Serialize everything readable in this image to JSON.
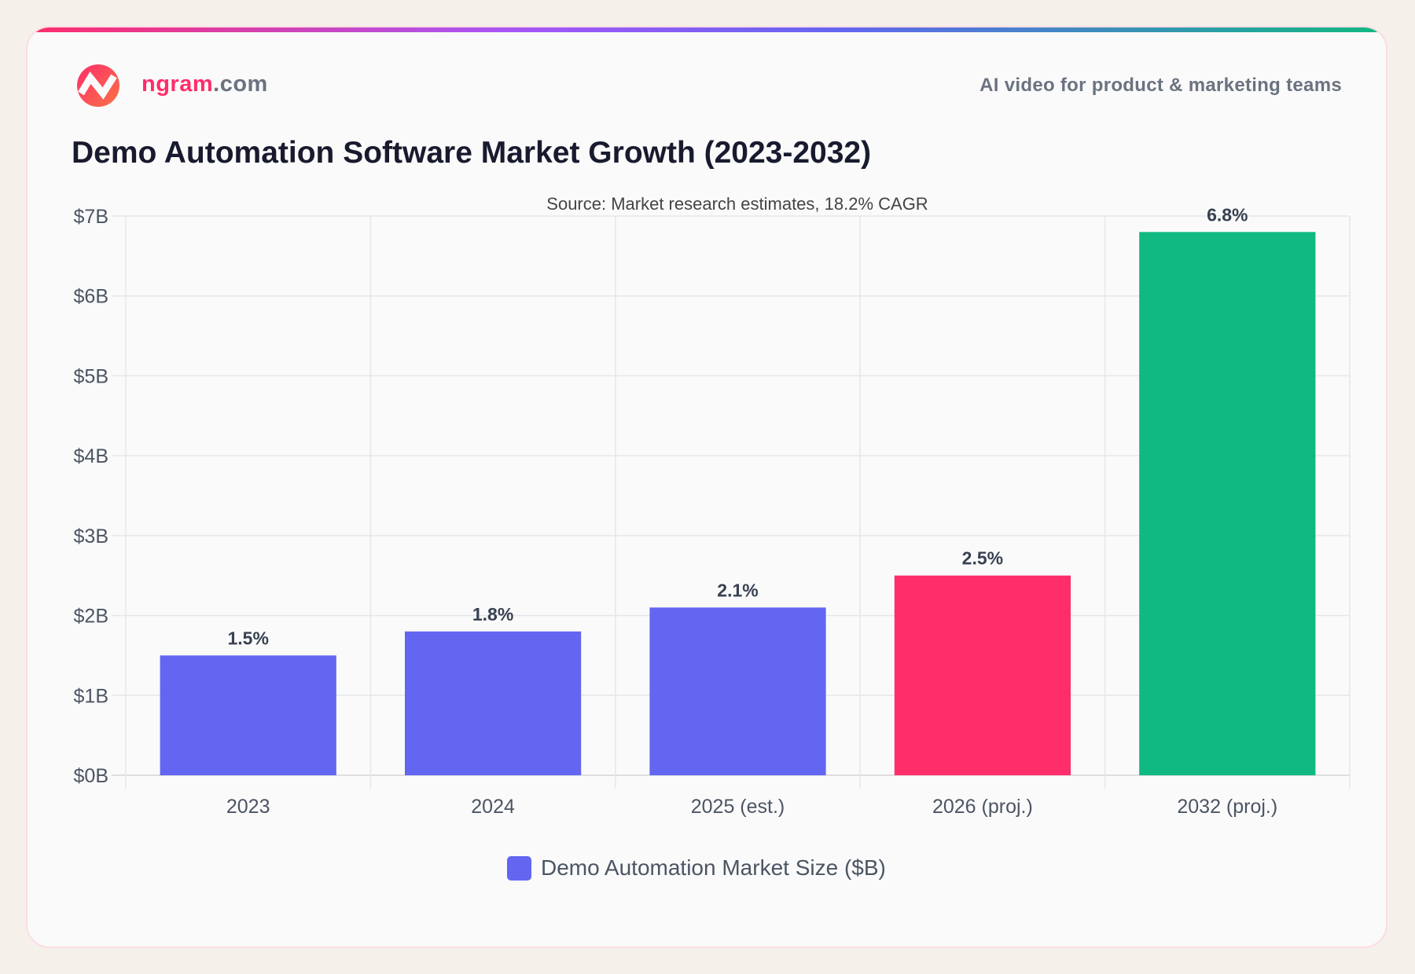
{
  "header": {
    "brand_main": "ngram",
    "brand_suffix": ".com",
    "tagline": "AI video for product & marketing teams"
  },
  "chart_data": {
    "type": "bar",
    "title": "Demo Automation Software Market Growth (2023-2032)",
    "subtitle": "Source: Market research estimates, 18.2% CAGR",
    "categories": [
      "2023",
      "2024",
      "2025 (est.)",
      "2026 (proj.)",
      "2032 (proj.)"
    ],
    "series": [
      {
        "name": "Demo Automation Market Size ($B)",
        "values": [
          1.5,
          1.8,
          2.1,
          2.5,
          6.8
        ]
      }
    ],
    "data_labels": [
      "1.5%",
      "1.8%",
      "2.1%",
      "2.5%",
      "6.8%"
    ],
    "bar_colors": [
      "#6366f1",
      "#6366f1",
      "#6366f1",
      "#ff2d6a",
      "#10b981"
    ],
    "legend_color": "#6366f1",
    "ylim": [
      0,
      7
    ],
    "yticks": [
      0,
      1,
      2,
      3,
      4,
      5,
      6,
      7
    ],
    "ytick_labels": [
      "$0B",
      "$1B",
      "$2B",
      "$3B",
      "$4B",
      "$5B",
      "$6B",
      "$7B"
    ],
    "grid": true,
    "legend_position": "bottom"
  }
}
